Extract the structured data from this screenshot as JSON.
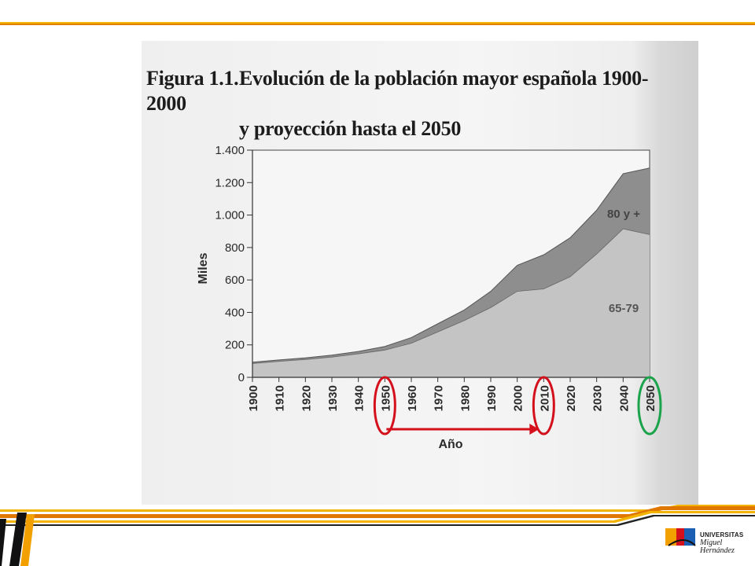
{
  "figure": {
    "number": "Figura 1.1.",
    "title_line1": "Evolución de la población mayor española 1900-2000",
    "title_line2": "y proyección hasta el 2050"
  },
  "logo": {
    "line1": "UNIVERSITAS",
    "line2": "Miguel",
    "line3": "Hernández"
  },
  "colors": {
    "area_80": "#8e8e8e",
    "area_65": "#c4c4c4",
    "highlight_red": "#d4101c",
    "highlight_green": "#1aa34a",
    "brand_orange": "#f2a000"
  },
  "chart_data": {
    "type": "area",
    "stacked": true,
    "ylabel": "Miles",
    "xlabel": "Año",
    "ylim": [
      0,
      1400
    ],
    "yticks": [
      0,
      200,
      400,
      600,
      800,
      1000,
      1200,
      1400
    ],
    "ytick_labels": [
      "0",
      "200",
      "400",
      "600",
      "800",
      "1.000",
      "1.200",
      "1.400"
    ],
    "x": [
      1900,
      1910,
      1920,
      1930,
      1940,
      1950,
      1960,
      1970,
      1980,
      1990,
      2000,
      2010,
      2020,
      2030,
      2040,
      2050
    ],
    "xtick_labels": [
      "1900",
      "1910",
      "1920",
      "1930",
      "1940",
      "1950",
      "1960",
      "1970",
      "1980",
      "1990",
      "2000",
      "2010",
      "2020",
      "2030",
      "2040",
      "2050"
    ],
    "series": [
      {
        "name": "65-79",
        "values": [
          85,
          98,
          110,
          125,
          145,
          168,
          210,
          280,
          350,
          430,
          530,
          545,
          620,
          760,
          915,
          880
        ]
      },
      {
        "name": "80 y +",
        "values": [
          8,
          9,
          10,
          12,
          14,
          22,
          35,
          50,
          65,
          100,
          160,
          210,
          240,
          270,
          340,
          410
        ]
      }
    ],
    "grid": false,
    "annotations": {
      "red_circles": [
        "1950",
        "2010"
      ],
      "red_arrow": {
        "from": "1950",
        "to": "2010"
      },
      "green_circle": "2050"
    }
  }
}
